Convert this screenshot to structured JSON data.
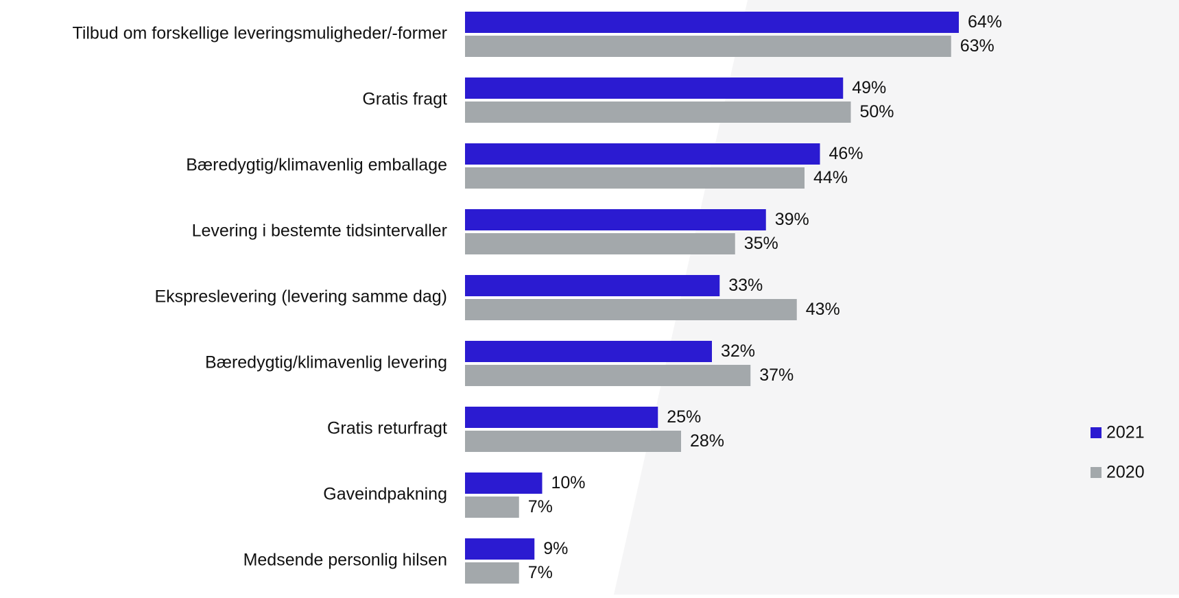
{
  "colors": {
    "series_2021": "#2b1bd1",
    "series_2020": "#a3a8ab",
    "label_text": "#111111",
    "bg_left": "#ffffff",
    "bg_right": "#f5f5f6"
  },
  "chart_data": {
    "type": "bar",
    "orientation": "horizontal",
    "title": "",
    "xlabel": "",
    "ylabel": "",
    "xlim": [
      0,
      100
    ],
    "value_suffix": "%",
    "categories": [
      "Tilbud om forskellige leveringsmuligheder/-former",
      "Gratis fragt",
      "Bæredygtig/klimavenlig emballage",
      "Levering i bestemte tidsintervaller",
      "Ekspreslevering (levering samme dag)",
      "Bæredygtig/klimavenlig levering",
      "Gratis returfragt",
      "Gaveindpakning",
      "Medsende personlig hilsen"
    ],
    "series": [
      {
        "name": "2021",
        "color": "#2b1bd1",
        "values": [
          64,
          49,
          46,
          39,
          33,
          32,
          25,
          10,
          9
        ]
      },
      {
        "name": "2020",
        "color": "#a3a8ab",
        "values": [
          63,
          50,
          44,
          35,
          43,
          37,
          28,
          7,
          7
        ]
      }
    ],
    "legend": {
      "placement": "right",
      "entries": [
        "2021",
        "2020"
      ]
    },
    "grid": false
  }
}
